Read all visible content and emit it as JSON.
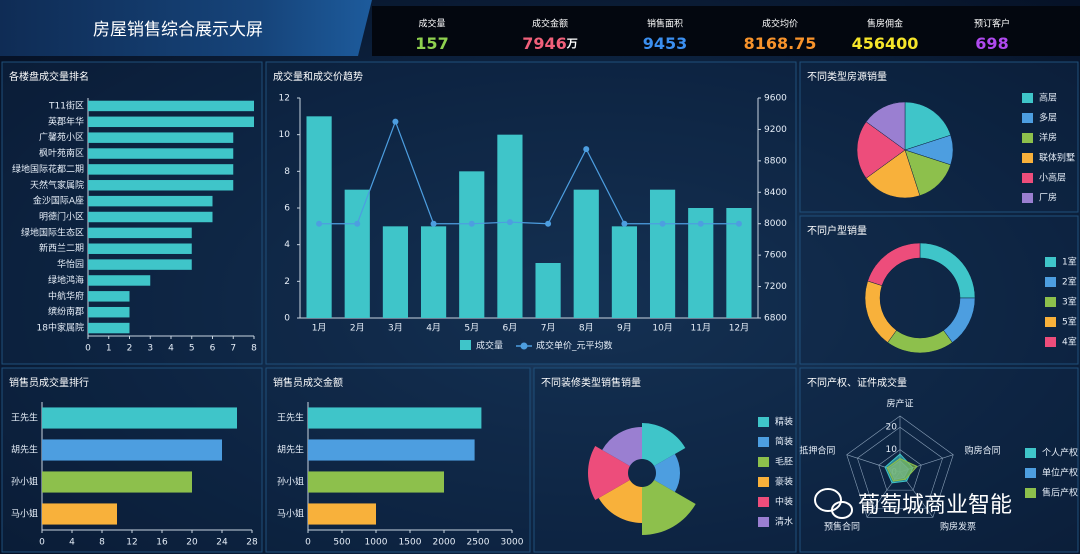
{
  "header": {
    "title": "房屋销售综合展示大屏",
    "kpis": [
      {
        "label": "成交量",
        "value": 157,
        "color": "#8fd14f"
      },
      {
        "label": "成交金额",
        "value": 7946,
        "unit": "万",
        "color": "#f0607a"
      },
      {
        "label": "销售面积",
        "value": 9453,
        "color": "#3b8ff0"
      },
      {
        "label": "成交均价",
        "value": 8168.75,
        "color": "#f8932b"
      },
      {
        "label": "售房佣金",
        "value": 456400,
        "color": "#f6e52a"
      },
      {
        "label": "预订客户",
        "value": 698,
        "color": "#b04af0"
      }
    ]
  },
  "chart_data": [
    {
      "type": "hbar",
      "title": "各楼盘成交量排名",
      "categories": [
        "T11街区",
        "英郡年华",
        "广馨苑小区",
        "枫叶苑南区",
        "绿地国际花都二期",
        "天然气家属院",
        "金沙国际A座",
        "明德门小区",
        "绿地国际生态区",
        "新西兰二期",
        "华怡园",
        "绿地鸿海",
        "中航华府",
        "缤纷南郡",
        "18中家属院"
      ],
      "values": [
        8,
        8,
        7,
        7,
        7,
        7,
        6,
        6,
        5,
        5,
        5,
        3,
        2,
        2,
        2
      ],
      "color": "#3fc5c9",
      "xlim": [
        0,
        8
      ],
      "xticks": [
        0,
        1,
        2,
        3,
        4,
        5,
        6,
        7,
        8
      ]
    },
    {
      "type": "combo",
      "title": "成交量和成交价趋势",
      "categories": [
        "1月",
        "2月",
        "3月",
        "4月",
        "5月",
        "6月",
        "7月",
        "8月",
        "9月",
        "10月",
        "11月",
        "12月"
      ],
      "series": [
        {
          "name": "成交量",
          "color": "#3fc5c9",
          "values": [
            11,
            7,
            5,
            5,
            8,
            10,
            3,
            7,
            5,
            7,
            6,
            6
          ]
        },
        {
          "name": "成交单价_元平均数",
          "color": "#4d9ee0",
          "axis": "y2",
          "values": [
            8000,
            8000,
            9300,
            8000,
            8000,
            8020,
            8000,
            8950,
            8000,
            8000,
            8000,
            8000
          ]
        }
      ],
      "ylim": [
        0,
        12
      ],
      "yticks": [
        0,
        2,
        4,
        6,
        8,
        10,
        12
      ],
      "y2lim": [
        6800,
        9600
      ],
      "y2ticks": [
        6800,
        7200,
        7600,
        8000,
        8400,
        8800,
        9200,
        9600
      ]
    },
    {
      "type": "pie",
      "title": "不同类型房源销量",
      "categories": [
        "高层",
        "多层",
        "洋房",
        "联体别墅",
        "小高层",
        "厂房"
      ],
      "values": [
        20,
        10,
        15,
        20,
        20,
        15
      ],
      "colors": [
        "#3fc5c9",
        "#4d9ee0",
        "#8dc04c",
        "#f8b13b",
        "#ed4d7b",
        "#9a7fd1"
      ]
    },
    {
      "type": "donut",
      "title": "不同户型销量",
      "categories": [
        "1室",
        "2室",
        "3室",
        "5室",
        "4室"
      ],
      "values": [
        25,
        15,
        20,
        20,
        20
      ],
      "colors": [
        "#3fc5c9",
        "#4d9ee0",
        "#8dc04c",
        "#f8b13b",
        "#ed4d7b"
      ]
    },
    {
      "type": "hbar",
      "title": "销售员成交量排行",
      "categories": [
        "王先生",
        "胡先生",
        "孙小姐",
        "马小姐"
      ],
      "values": [
        26,
        24,
        20,
        10
      ],
      "colors": [
        "#3fc5c9",
        "#4d9ee0",
        "#8dc04c",
        "#f8b13b"
      ],
      "xlim": [
        0,
        28
      ],
      "xticks": [
        0,
        4,
        8,
        12,
        16,
        20,
        24,
        28
      ]
    },
    {
      "type": "hbar",
      "title": "销售员成交金额",
      "categories": [
        "王先生",
        "胡先生",
        "孙小姐",
        "马小姐"
      ],
      "values": [
        2550,
        2450,
        2000,
        1000
      ],
      "colors": [
        "#3fc5c9",
        "#4d9ee0",
        "#8dc04c",
        "#f8b13b"
      ],
      "xlim": [
        0,
        3000
      ],
      "xticks": [
        0,
        500,
        1000,
        1500,
        2000,
        2500,
        3000
      ]
    },
    {
      "type": "rose",
      "title": "不同装修类型销售销量",
      "categories": [
        "精装",
        "简装",
        "毛胚",
        "豪装",
        "中装",
        "清水"
      ],
      "values": [
        45,
        30,
        60,
        45,
        50,
        40
      ],
      "colors": [
        "#3fc5c9",
        "#4d9ee0",
        "#8dc04c",
        "#f8b13b",
        "#ed4d7b",
        "#9a7fd1"
      ]
    },
    {
      "type": "radar",
      "title": "不同产权、证件成交量",
      "indicators": [
        "房产证",
        "购房合同",
        "购房发票",
        "预售合同",
        "抵押合同"
      ],
      "rlim": [
        0,
        25
      ],
      "rticks": [
        0,
        10,
        20
      ],
      "series": [
        {
          "name": "个人产权",
          "color": "#3fc5c9",
          "values": [
            8,
            6,
            5,
            6,
            7
          ]
        },
        {
          "name": "单位产权",
          "color": "#4d9ee0",
          "values": [
            5,
            4,
            3,
            4,
            5
          ]
        },
        {
          "name": "售后产权",
          "color": "#8dc04c",
          "values": [
            6,
            8,
            4,
            5,
            6
          ]
        }
      ]
    }
  ],
  "watermark": "葡萄城商业智能"
}
